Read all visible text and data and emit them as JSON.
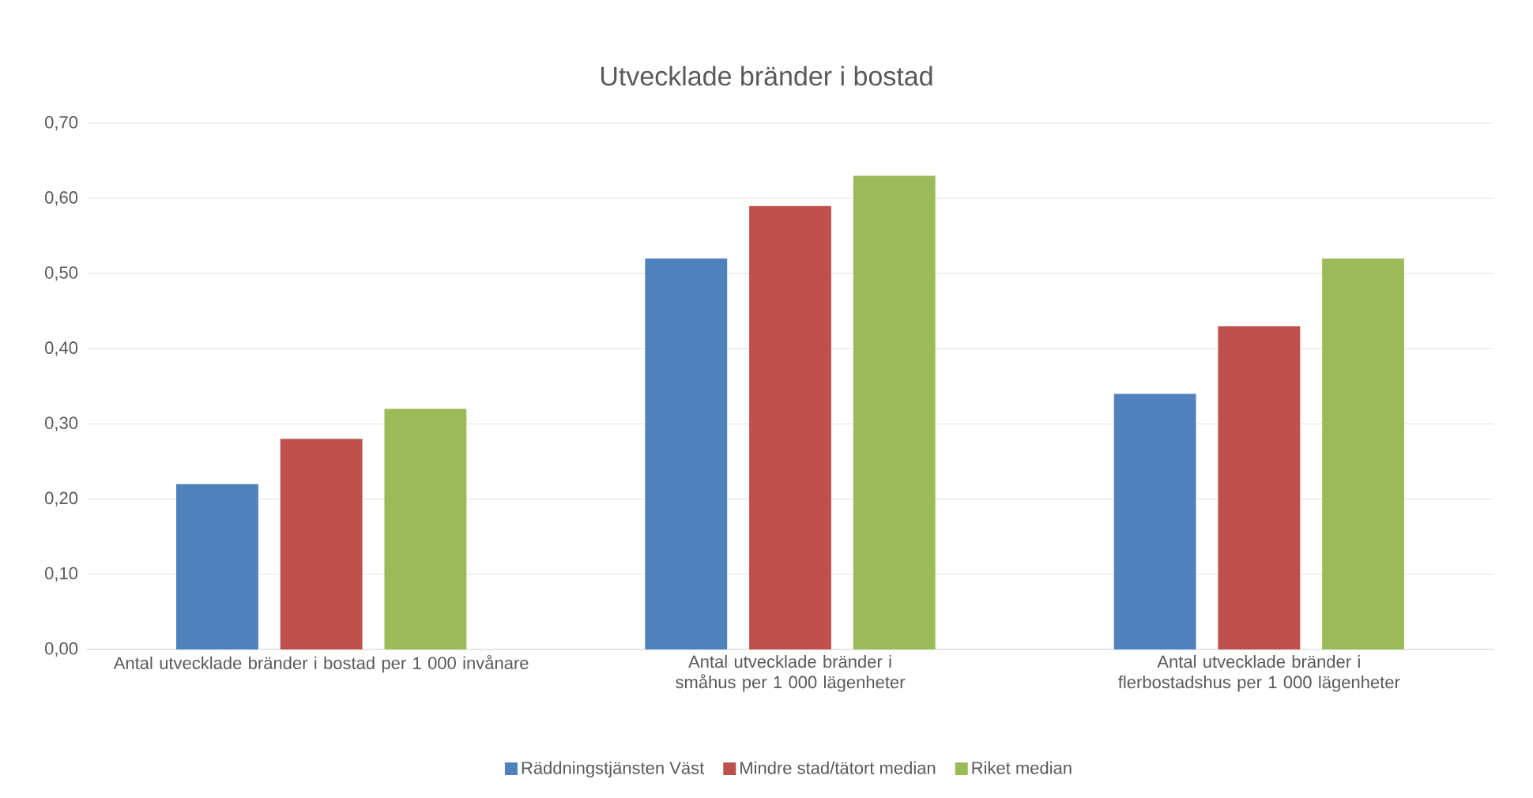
{
  "chart_data": {
    "type": "bar",
    "title": "Utvecklade bränder i bostad",
    "categories": [
      "Antal utvecklade bränder i bostad per 1 000 invånare",
      "Antal utvecklade bränder i småhus per 1 000 lägenheter",
      "Antal utvecklade bränder i flerbostadshus per 1 000 lägenheter"
    ],
    "series": [
      {
        "name": "Räddningstjänsten Väst",
        "color": "#4f81bd",
        "values": [
          0.22,
          0.52,
          0.34
        ]
      },
      {
        "name": "Mindre stad/tätort median",
        "color": "#c0504d",
        "values": [
          0.28,
          0.59,
          0.43
        ]
      },
      {
        "name": "Riket median",
        "color": "#9bbb59",
        "values": [
          0.32,
          0.63,
          0.52
        ]
      }
    ],
    "ylim": [
      0,
      0.7
    ],
    "yticks": [
      {
        "value": 0,
        "label": "0,00"
      },
      {
        "value": 0.1,
        "label": "0,10"
      },
      {
        "value": 0.2,
        "label": "0,20"
      },
      {
        "value": 0.3,
        "label": "0,30"
      },
      {
        "value": 0.4,
        "label": "0,40"
      },
      {
        "value": 0.5,
        "label": "0,50"
      },
      {
        "value": 0.6,
        "label": "0,60"
      },
      {
        "value": 0.7,
        "label": "0,70"
      }
    ],
    "grid": "y",
    "legend": "bottom"
  }
}
